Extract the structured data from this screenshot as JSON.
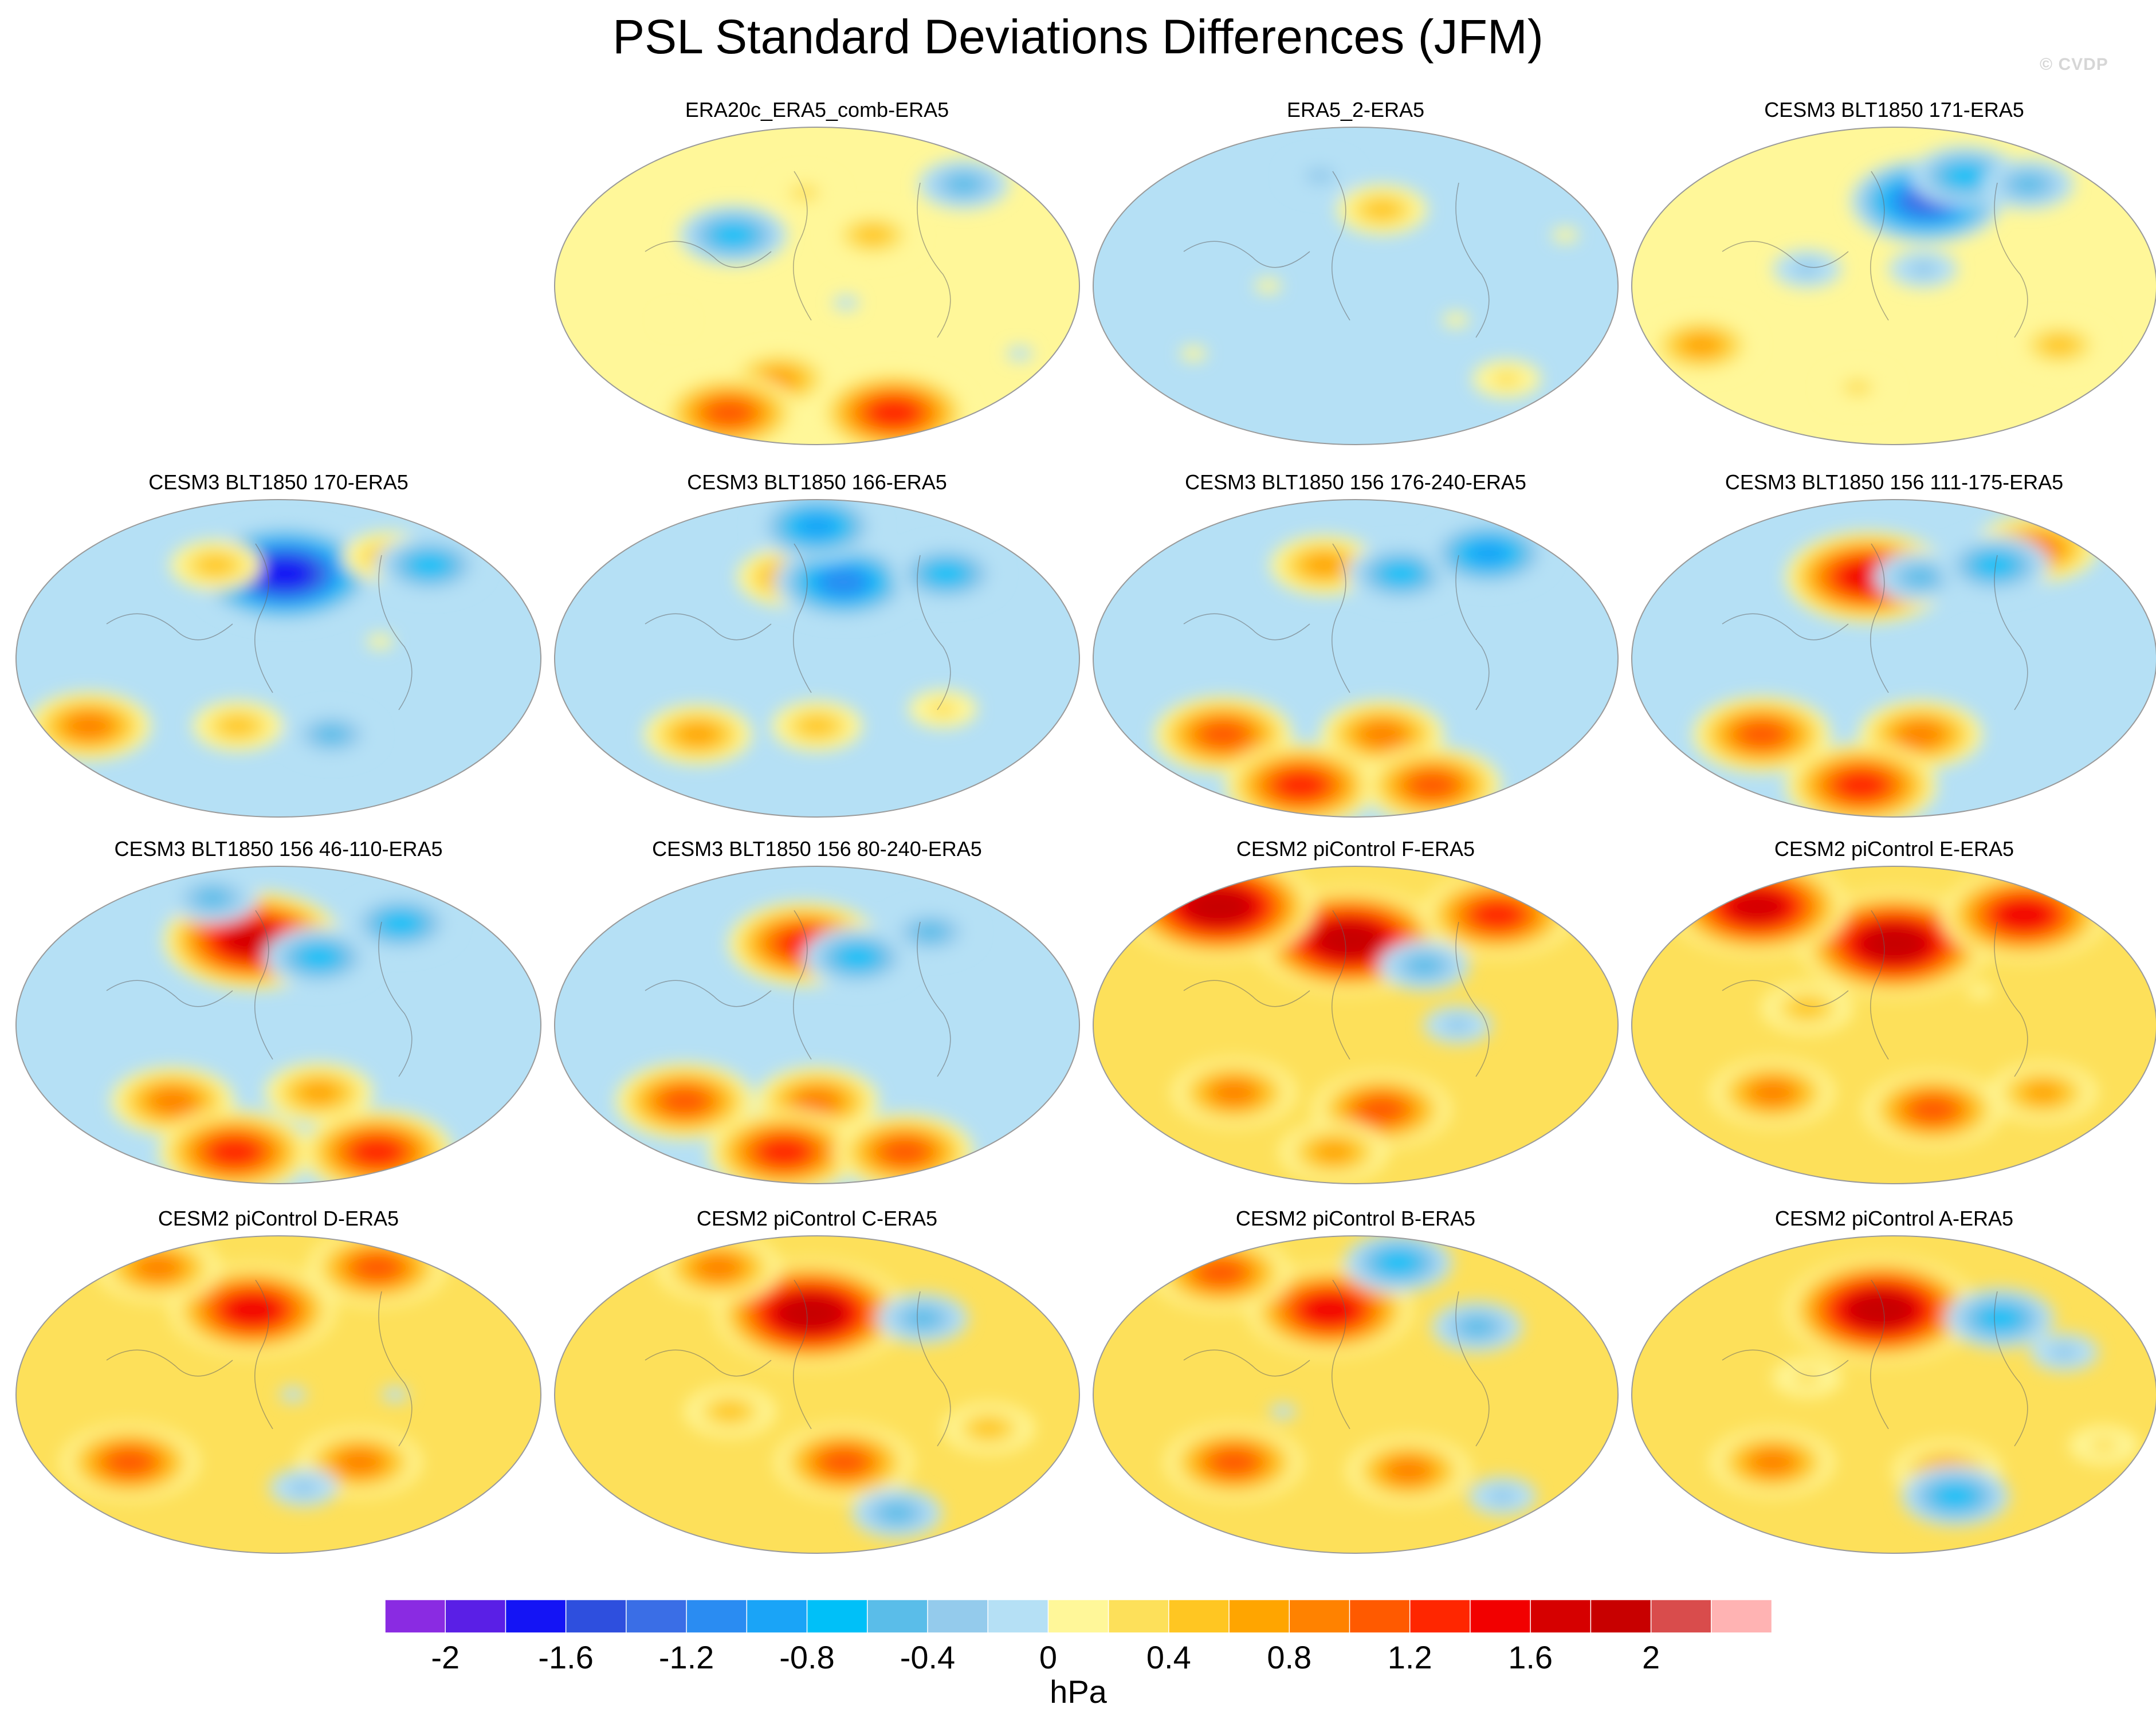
{
  "title": "PSL Standard Deviations Differences (JFM)",
  "watermark": "© CVDP",
  "chart_data": {
    "type": "heatmap",
    "projection": "global map (Robinson-like), Pacific-centered",
    "variable": "PSL standard deviation difference",
    "season": "JFM",
    "panels": [
      {
        "title": "ERA20c_ERA5_comb-ERA5",
        "background": "#fff799",
        "features": [
          {
            "lon": 120,
            "lat": 30,
            "value": -0.8
          },
          {
            "lon": 170,
            "lat": 55,
            "value": 0.4
          },
          {
            "lon": 220,
            "lat": 30,
            "value": 0.6
          },
          {
            "lon": 300,
            "lat": 60,
            "value": -0.6
          },
          {
            "lon": 80,
            "lat": -20,
            "value": 0.3
          },
          {
            "lon": 200,
            "lat": -10,
            "value": -0.2
          },
          {
            "lon": 150,
            "lat": -55,
            "value": 0.8
          },
          {
            "lon": 250,
            "lat": -75,
            "value": 1.4
          },
          {
            "lon": 100,
            "lat": -75,
            "value": 1.2
          },
          {
            "lon": 330,
            "lat": -40,
            "value": -0.2
          }
        ]
      },
      {
        "title": "ERA5_2-ERA5",
        "background": "#b5e0f5",
        "features": [
          {
            "lon": 200,
            "lat": 45,
            "value": 0.6
          },
          {
            "lon": 120,
            "lat": 0,
            "value": 0.2
          },
          {
            "lon": 150,
            "lat": 65,
            "value": -0.4
          },
          {
            "lon": 60,
            "lat": -40,
            "value": 0.2
          },
          {
            "lon": 250,
            "lat": -20,
            "value": 0.2
          },
          {
            "lon": 300,
            "lat": -55,
            "value": 0.4
          },
          {
            "lon": 330,
            "lat": 30,
            "value": 0.2
          }
        ]
      },
      {
        "title": "CESM3 BLT1850 171-ERA5",
        "background": "#fff799",
        "features": [
          {
            "lon": 205,
            "lat": 50,
            "value": -1.4
          },
          {
            "lon": 240,
            "lat": 65,
            "value": -0.8
          },
          {
            "lon": 290,
            "lat": 60,
            "value": -0.6
          },
          {
            "lon": 120,
            "lat": 10,
            "value": -0.4
          },
          {
            "lon": 200,
            "lat": 10,
            "value": -0.4
          },
          {
            "lon": 40,
            "lat": -35,
            "value": 0.8
          },
          {
            "lon": 300,
            "lat": -35,
            "value": 0.6
          },
          {
            "lon": 150,
            "lat": -60,
            "value": 0.4
          }
        ]
      },
      {
        "title": "CESM3 BLT1850 170-ERA5",
        "background": "#b5e0f5",
        "features": [
          {
            "lon": 185,
            "lat": 50,
            "value": -1.8
          },
          {
            "lon": 130,
            "lat": 55,
            "value": 0.6
          },
          {
            "lon": 270,
            "lat": 60,
            "value": 0.6
          },
          {
            "lon": 300,
            "lat": 55,
            "value": -0.8
          },
          {
            "lon": 40,
            "lat": -40,
            "value": 1.0
          },
          {
            "lon": 150,
            "lat": -40,
            "value": 0.6
          },
          {
            "lon": 220,
            "lat": -45,
            "value": -0.6
          },
          {
            "lon": 250,
            "lat": 10,
            "value": 0.2
          }
        ]
      },
      {
        "title": "CESM3 BLT1850 166-ERA5",
        "background": "#b5e0f5",
        "features": [
          {
            "lon": 160,
            "lat": 48,
            "value": 0.8
          },
          {
            "lon": 200,
            "lat": 45,
            "value": -1.2
          },
          {
            "lon": 180,
            "lat": 78,
            "value": -1.0
          },
          {
            "lon": 280,
            "lat": 50,
            "value": -0.8
          },
          {
            "lon": 90,
            "lat": -45,
            "value": 0.8
          },
          {
            "lon": 180,
            "lat": -40,
            "value": 0.6
          },
          {
            "lon": 270,
            "lat": -30,
            "value": 0.4
          }
        ]
      },
      {
        "title": "CESM3 BLT1850 156 176-240-ERA5",
        "background": "#b5e0f5",
        "features": [
          {
            "lon": 155,
            "lat": 55,
            "value": 0.8
          },
          {
            "lon": 215,
            "lat": 50,
            "value": -0.8
          },
          {
            "lon": 290,
            "lat": 62,
            "value": -1.0
          },
          {
            "lon": 80,
            "lat": -45,
            "value": 1.2
          },
          {
            "lon": 200,
            "lat": -45,
            "value": 1.0
          },
          {
            "lon": 130,
            "lat": -75,
            "value": 1.4
          },
          {
            "lon": 250,
            "lat": -75,
            "value": 1.2
          }
        ]
      },
      {
        "title": "CESM3 BLT1850 156 111-175-ERA5",
        "background": "#b5e0f5",
        "features": [
          {
            "lon": 160,
            "lat": 48,
            "value": 1.6
          },
          {
            "lon": 200,
            "lat": 48,
            "value": -0.6
          },
          {
            "lon": 300,
            "lat": 65,
            "value": 1.0
          },
          {
            "lon": 260,
            "lat": 55,
            "value": -0.8
          },
          {
            "lon": 80,
            "lat": -45,
            "value": 1.2
          },
          {
            "lon": 200,
            "lat": -45,
            "value": 1.0
          },
          {
            "lon": 150,
            "lat": -75,
            "value": 1.4
          }
        ]
      },
      {
        "title": "CESM3 BLT1850 156 46-110-ERA5",
        "background": "#b5e0f5",
        "features": [
          {
            "lon": 160,
            "lat": 50,
            "value": 1.8
          },
          {
            "lon": 210,
            "lat": 40,
            "value": -0.8
          },
          {
            "lon": 280,
            "lat": 60,
            "value": -0.8
          },
          {
            "lon": 120,
            "lat": 75,
            "value": -0.6
          },
          {
            "lon": 100,
            "lat": -45,
            "value": 1.0
          },
          {
            "lon": 210,
            "lat": -40,
            "value": 0.8
          },
          {
            "lon": 140,
            "lat": -75,
            "value": 1.4
          },
          {
            "lon": 270,
            "lat": -75,
            "value": 1.4
          }
        ]
      },
      {
        "title": "CESM3 BLT1850 156 80-240-ERA5",
        "background": "#b5e0f5",
        "features": [
          {
            "lon": 170,
            "lat": 48,
            "value": 1.4
          },
          {
            "lon": 210,
            "lat": 40,
            "value": -0.8
          },
          {
            "lon": 270,
            "lat": 55,
            "value": -0.6
          },
          {
            "lon": 80,
            "lat": -45,
            "value": 1.2
          },
          {
            "lon": 180,
            "lat": -45,
            "value": 1.0
          },
          {
            "lon": 150,
            "lat": -75,
            "value": 1.4
          },
          {
            "lon": 260,
            "lat": -75,
            "value": 1.2
          }
        ]
      },
      {
        "title": "CESM2 piControl F-ERA5",
        "background": "#fde05a",
        "features": [
          {
            "lon": 175,
            "lat": 50,
            "value": 2.0
          },
          {
            "lon": 60,
            "lat": 70,
            "value": 2.0
          },
          {
            "lon": 300,
            "lat": 65,
            "value": 1.4
          },
          {
            "lon": 230,
            "lat": 35,
            "value": -0.6
          },
          {
            "lon": 250,
            "lat": 0,
            "value": -0.4
          },
          {
            "lon": 90,
            "lat": -40,
            "value": 1.0
          },
          {
            "lon": 200,
            "lat": -50,
            "value": 1.2
          },
          {
            "lon": 160,
            "lat": -75,
            "value": 0.8
          }
        ]
      },
      {
        "title": "CESM2 piControl E-ERA5",
        "background": "#fde05a",
        "features": [
          {
            "lon": 180,
            "lat": 48,
            "value": 2.0
          },
          {
            "lon": 60,
            "lat": 70,
            "value": 1.8
          },
          {
            "lon": 290,
            "lat": 65,
            "value": 1.6
          },
          {
            "lon": 120,
            "lat": 10,
            "value": 0.6
          },
          {
            "lon": 240,
            "lat": 20,
            "value": 0.2
          },
          {
            "lon": 90,
            "lat": -40,
            "value": 1.0
          },
          {
            "lon": 210,
            "lat": -50,
            "value": 1.2
          },
          {
            "lon": 290,
            "lat": -40,
            "value": 0.8
          }
        ]
      },
      {
        "title": "CESM2 piControl D-ERA5",
        "background": "#fde05a",
        "features": [
          {
            "lon": 160,
            "lat": 50,
            "value": 1.6
          },
          {
            "lon": 70,
            "lat": 75,
            "value": 1.0
          },
          {
            "lon": 270,
            "lat": 75,
            "value": 1.2
          },
          {
            "lon": 190,
            "lat": 0,
            "value": -0.2
          },
          {
            "lon": 260,
            "lat": 0,
            "value": -0.2
          },
          {
            "lon": 70,
            "lat": -40,
            "value": 1.2
          },
          {
            "lon": 240,
            "lat": -40,
            "value": 1.0
          },
          {
            "lon": 200,
            "lat": -55,
            "value": -0.4
          }
        ]
      },
      {
        "title": "CESM2 piControl C-ERA5",
        "background": "#fde05a",
        "features": [
          {
            "lon": 175,
            "lat": 48,
            "value": 2.0
          },
          {
            "lon": 90,
            "lat": 75,
            "value": 1.0
          },
          {
            "lon": 260,
            "lat": 45,
            "value": -0.6
          },
          {
            "lon": 120,
            "lat": -10,
            "value": 0.6
          },
          {
            "lon": 200,
            "lat": -40,
            "value": 1.2
          },
          {
            "lon": 250,
            "lat": -70,
            "value": -0.6
          },
          {
            "lon": 300,
            "lat": -20,
            "value": 0.6
          }
        ]
      },
      {
        "title": "CESM2 piControl B-ERA5",
        "background": "#fde05a",
        "features": [
          {
            "lon": 160,
            "lat": 50,
            "value": 1.6
          },
          {
            "lon": 60,
            "lat": 72,
            "value": 1.2
          },
          {
            "lon": 220,
            "lat": 78,
            "value": -0.8
          },
          {
            "lon": 270,
            "lat": 40,
            "value": -0.6
          },
          {
            "lon": 130,
            "lat": -10,
            "value": -0.2
          },
          {
            "lon": 90,
            "lat": -40,
            "value": 1.2
          },
          {
            "lon": 220,
            "lat": -45,
            "value": 1.0
          },
          {
            "lon": 300,
            "lat": -60,
            "value": -0.4
          }
        ]
      },
      {
        "title": "CESM2 piControl A-ERA5",
        "background": "#fde05a",
        "features": [
          {
            "lon": 170,
            "lat": 50,
            "value": 2.0
          },
          {
            "lon": 260,
            "lat": 45,
            "value": -0.8
          },
          {
            "lon": 300,
            "lat": 25,
            "value": -0.4
          },
          {
            "lon": 120,
            "lat": 10,
            "value": 0.4
          },
          {
            "lon": 90,
            "lat": -40,
            "value": 1.0
          },
          {
            "lon": 220,
            "lat": -45,
            "value": 0.8
          },
          {
            "lon": 230,
            "lat": -60,
            "value": -0.8
          },
          {
            "lon": 330,
            "lat": -30,
            "value": 0.4
          }
        ]
      }
    ],
    "colorbar": {
      "label": "hPa",
      "levels": [
        -2.2,
        -2.0,
        -1.8,
        -1.6,
        -1.4,
        -1.2,
        -1.0,
        -0.8,
        -0.6,
        -0.4,
        -0.2,
        0.0,
        0.2,
        0.4,
        0.6,
        0.8,
        1.0,
        1.2,
        1.4,
        1.6,
        1.8,
        2.0,
        2.2
      ],
      "colors": [
        "#8a2be2",
        "#5a1fe6",
        "#1414f5",
        "#2e4fde",
        "#3a6ee6",
        "#2a8cf2",
        "#1aa4f7",
        "#00c0f8",
        "#5abde9",
        "#94cbec",
        "#b5e0f5",
        "#fff799",
        "#fde05a",
        "#ffc622",
        "#ffa500",
        "#ff8200",
        "#ff5a00",
        "#ff2600",
        "#f20000",
        "#d60000",
        "#c80000",
        "#d94c4c",
        "#ffb3b3"
      ],
      "tick_labels": [
        "-2",
        "-1.6",
        "-1.2",
        "-0.8",
        "-0.4",
        "0",
        "0.4",
        "0.8",
        "1.2",
        "1.6",
        "2"
      ],
      "tick_values": [
        -2,
        -1.6,
        -1.2,
        -0.8,
        -0.4,
        0,
        0.4,
        0.8,
        1.2,
        1.6,
        2
      ]
    }
  }
}
